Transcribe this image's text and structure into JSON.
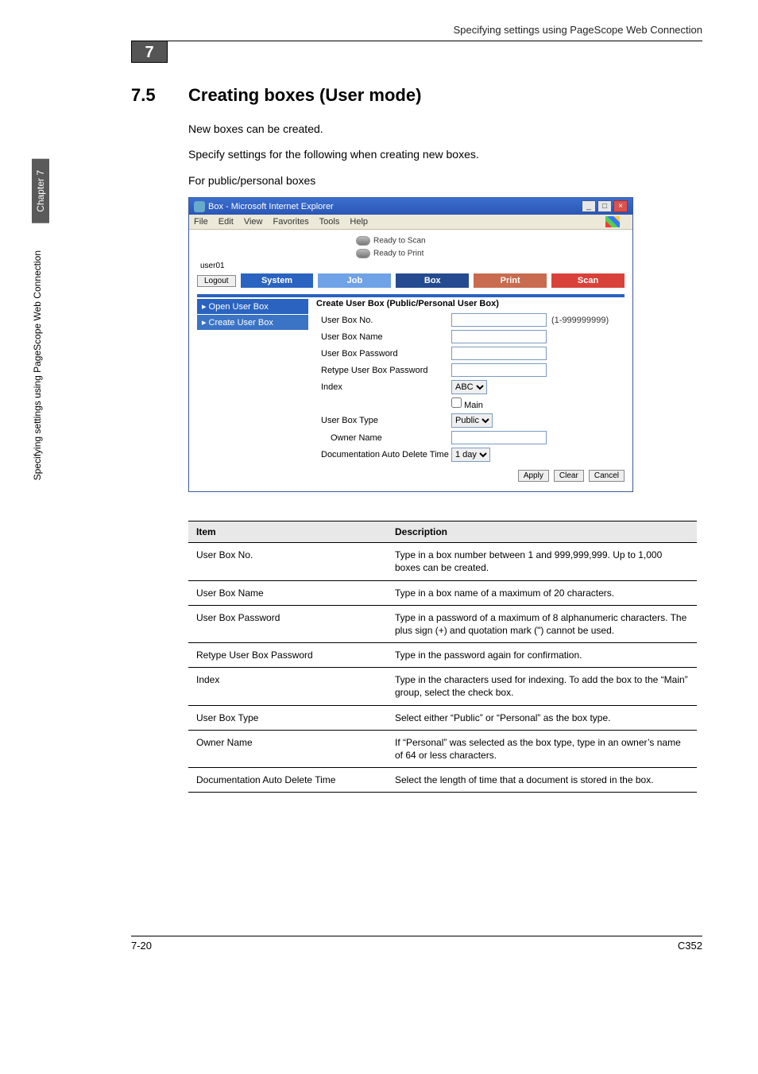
{
  "running_head": "Specifying settings using PageScope Web Connection",
  "chapter_number_box": "7",
  "sidebar": {
    "chapter": "Chapter 7",
    "section": "Specifying settings using PageScope Web Connection"
  },
  "h2": {
    "num": "7.5",
    "title": "Creating boxes (User mode)"
  },
  "paragraphs": [
    "New boxes can be created.",
    "Specify settings for the following when creating new boxes.",
    "For public/personal boxes"
  ],
  "ie": {
    "title": "Box - Microsoft Internet Explorer",
    "menu": [
      "File",
      "Edit",
      "View",
      "Favorites",
      "Tools",
      "Help"
    ],
    "ready": [
      "Ready to Scan",
      "Ready to Print"
    ],
    "user": "user01",
    "logout": "Logout",
    "tabs": {
      "system": "System",
      "job": "Job",
      "box": "Box",
      "print": "Print",
      "scan": "Scan"
    },
    "side": [
      {
        "label": "Open User Box"
      },
      {
        "label": "Create User Box"
      }
    ],
    "form": {
      "title": "Create User Box (Public/Personal User Box)",
      "rows": {
        "no_label": "User Box No.",
        "no_hint": "(1-999999999)",
        "name_label": "User Box Name",
        "pwd_label": "User Box Password",
        "rpwd_label": "Retype User Box Password",
        "index_label": "Index",
        "index_sel": "ABC",
        "index_main": "Main",
        "type_label": "User Box Type",
        "type_sel": "Public",
        "owner_label": "Owner Name",
        "deltime_label": "Documentation Auto Delete Time",
        "deltime_sel": "1 day"
      },
      "buttons": {
        "apply": "Apply",
        "clear": "Clear",
        "cancel": "Cancel"
      }
    }
  },
  "spec": {
    "head_item": "Item",
    "head_desc": "Description",
    "rows": [
      {
        "item": "User Box No.",
        "desc": "Type in a box number between 1 and 999,999,999. Up to 1,000 boxes can be created."
      },
      {
        "item": "User Box Name",
        "desc": "Type in a box name of a maximum of 20 characters."
      },
      {
        "item": "User Box Password",
        "desc": "Type in a password of a maximum of 8 alphanumeric characters. The plus sign (+) and quotation mark (\") cannot be used."
      },
      {
        "item": "Retype User Box Password",
        "desc": "Type in the password again for confirmation."
      },
      {
        "item": "Index",
        "desc": "Type in the characters used for indexing. To add the box to the “Main” group, select the check box."
      },
      {
        "item": "User Box Type",
        "desc": "Select either “Public” or “Personal” as the box type."
      },
      {
        "item": "Owner Name",
        "desc": "If “Personal” was selected as the box type, type in an owner’s name of 64 or less characters."
      },
      {
        "item": "Documentation Auto Delete Time",
        "desc": "Select the length of time that a document is stored in the box."
      }
    ]
  },
  "footer": {
    "left": "7-20",
    "right": "C352"
  }
}
